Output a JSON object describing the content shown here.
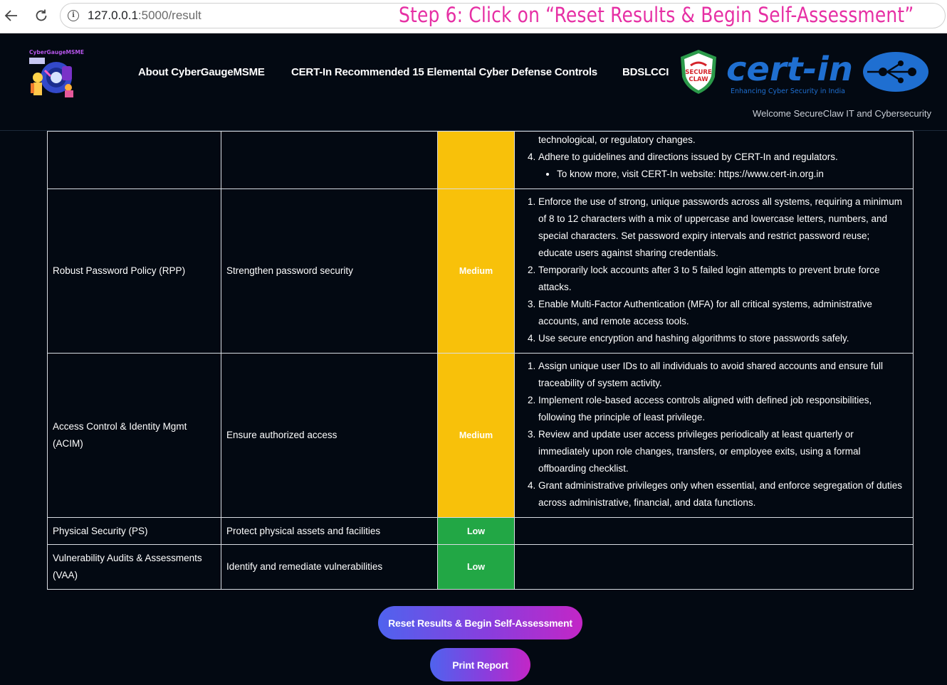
{
  "browser": {
    "url_host": "127.0.0.1",
    "url_path": ":5000/result",
    "overlay_step": "Step 6: Click on “Reset Results & Begin Self-Assessment”"
  },
  "header": {
    "brand_name": "CyberGaugeMSME",
    "nav": [
      {
        "label": "About CyberGaugeMSME"
      },
      {
        "label": "CERT-In Recommended 15 Elemental Cyber Defense Controls"
      },
      {
        "label": "BDSLCCI"
      }
    ],
    "shield_line1": "SECURE",
    "shield_line2": "CLAW",
    "certin_word": "cert-in",
    "certin_tagline": "Enhancing Cyber Security in India",
    "welcome": "Welcome SecureClaw IT and Cybersecurity"
  },
  "table": {
    "partial_row": {
      "continuation": "technological, or regulatory changes.",
      "item4": "Adhere to guidelines and directions issued by CERT-In and regulators.",
      "subitem": "To know more, visit CERT-In website: https://www.cert-in.org.in"
    },
    "rows": [
      {
        "control": "Robust Password Policy (RPP)",
        "objective": "Strengthen password security",
        "risk": "Medium",
        "recommendations": [
          "Enforce the use of strong, unique passwords across all systems, requiring a minimum of 8 to 12 characters with a mix of uppercase and lowercase letters, numbers, and special characters. Set password expiry intervals and restrict password reuse; educate users against sharing credentials.",
          "Temporarily lock accounts after 3 to 5 failed login attempts to prevent brute force attacks.",
          "Enable Multi-Factor Authentication (MFA) for all critical systems, administrative accounts, and remote access tools.",
          "Use secure encryption and hashing algorithms to store passwords safely."
        ]
      },
      {
        "control": "Access Control & Identity Mgmt (ACIM)",
        "objective": "Ensure authorized access",
        "risk": "Medium",
        "recommendations": [
          "Assign unique user IDs to all individuals to avoid shared accounts and ensure full traceability of system activity.",
          "Implement role-based access controls aligned with defined job responsibilities, following the principle of least privilege.",
          "Review and update user access privileges periodically at least quarterly or immediately upon role changes, transfers, or employee exits, using a formal offboarding checklist.",
          "Grant administrative privileges only when essential, and enforce segregation of duties across administrative, financial, and data functions."
        ]
      },
      {
        "control": "Physical Security (PS)",
        "objective": "Protect physical assets and facilities",
        "risk": "Low"
      },
      {
        "control": "Vulnerability Audits & Assessments (VAA)",
        "objective": "Identify and remediate vulnerabilities",
        "risk": "Low"
      }
    ]
  },
  "actions": {
    "reset_label": "Reset Results & Begin Self-Assessment",
    "print_label": "Print Report"
  },
  "colors": {
    "background": "#030912",
    "risk_medium": "#f8c10a",
    "risk_low": "#22a745",
    "button_gradient_start": "#4f63ee",
    "button_gradient_end": "#c326c6",
    "overlay_text": "#e62fa4"
  }
}
